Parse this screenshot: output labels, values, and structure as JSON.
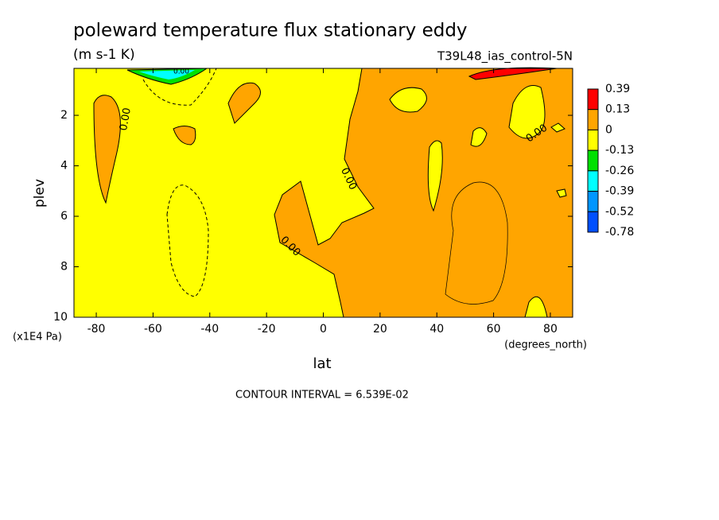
{
  "chart_data": {
    "type": "contour",
    "title": "poleward temperature flux stationary eddy",
    "units": "(m s-1 K)",
    "dataset": "T39L48_ias_control-5N",
    "x_label": "lat",
    "x_units": "(degrees_north)",
    "y_label": "plev",
    "y_units": "(x1E4 Pa)",
    "footnote": "CONTOUR INTERVAL = 6.539E-02",
    "xlim": [
      -87.86,
      87.86
    ],
    "xticks": [
      -80,
      -60,
      -40,
      -20,
      0,
      20,
      40,
      60,
      80
    ],
    "ylim": [
      0.14,
      10
    ],
    "y_inverted": true,
    "yticks": [
      2,
      4,
      6,
      8,
      10
    ],
    "contour_labels": [
      "0.00",
      "0.00",
      "0.00",
      "0.00",
      "0.00"
    ],
    "colorbar": {
      "levels": [
        0.39,
        0.13,
        0,
        -0.13,
        -0.26,
        -0.39,
        -0.52,
        -0.78
      ],
      "colors": [
        "#ff0000",
        "#ffa500",
        "#ffff00",
        "#00e000",
        "#00ffff",
        "#0096ff",
        "#0050ff"
      ]
    }
  }
}
